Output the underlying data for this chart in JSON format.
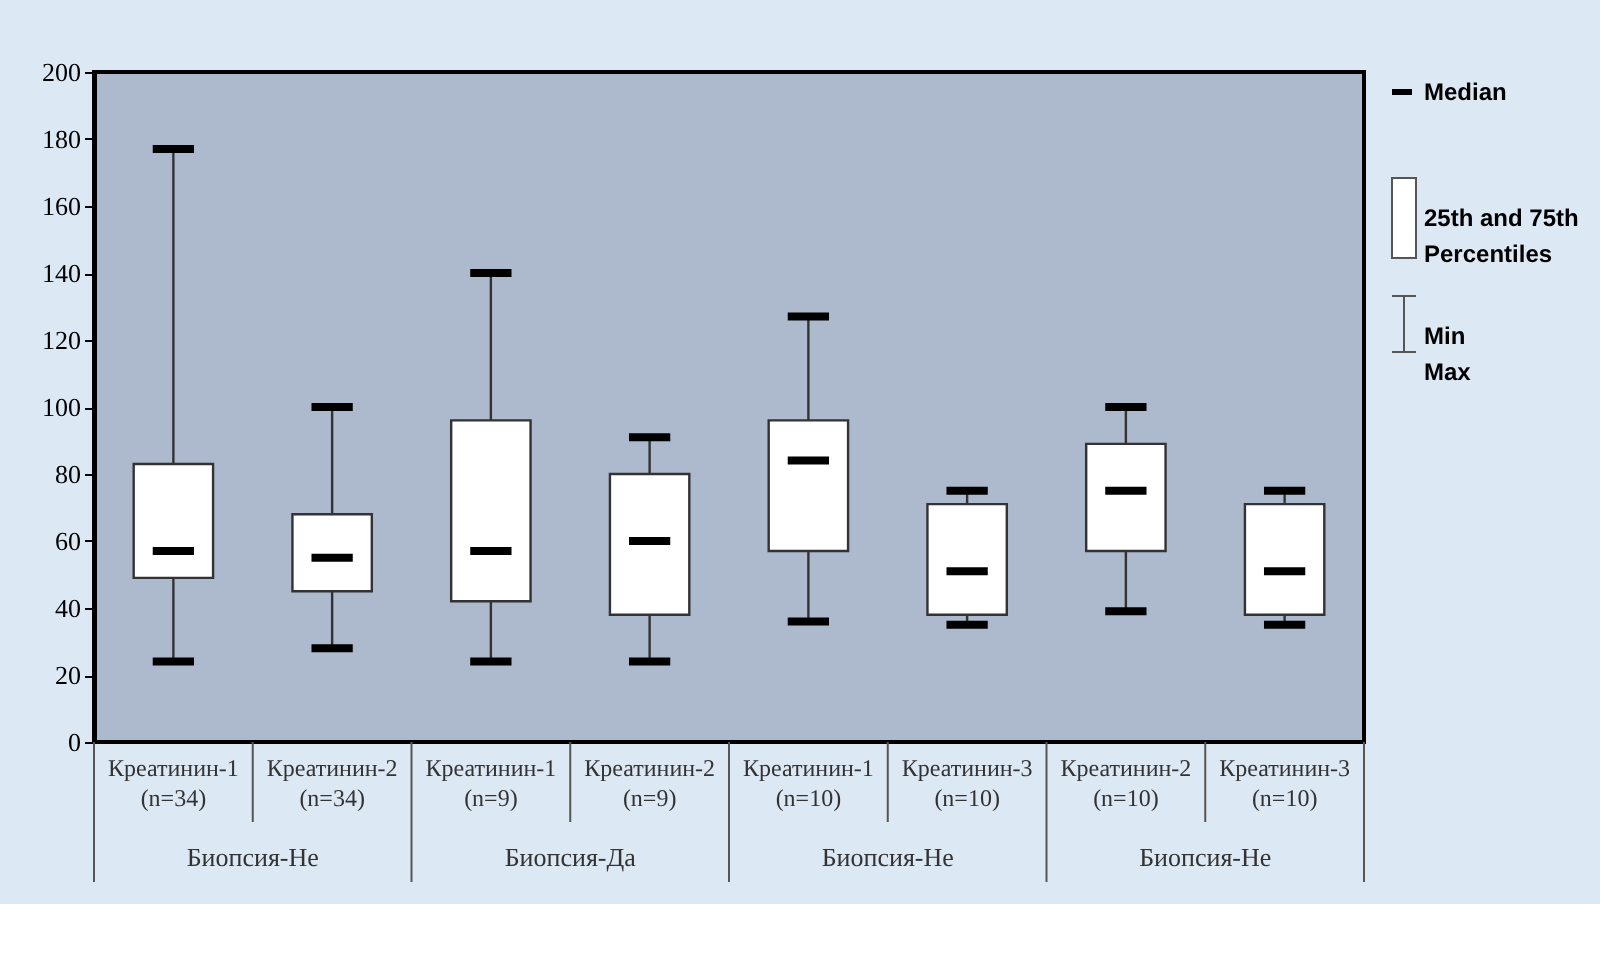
{
  "chart_data": {
    "type": "box",
    "categories": [
      "Креатинин-1 (n=34)",
      "Креатинин-2 (n=34)",
      "Креатинин-1 (n=9)",
      "Креатинин-2 (n=9)",
      "Креатинин-1 (n=10)",
      "Креатинин-3 (n=10)",
      "Креатинин-2 (n=10)",
      "Креатинин-3 (n=10)"
    ],
    "boxes": [
      {
        "low": 24,
        "q1": 49,
        "median": 57,
        "q3": 83,
        "high": 177
      },
      {
        "low": 28,
        "q1": 45,
        "median": 55,
        "q3": 68,
        "high": 100
      },
      {
        "low": 24,
        "q1": 42,
        "median": 57,
        "q3": 96,
        "high": 140
      },
      {
        "low": 24,
        "q1": 38,
        "median": 60,
        "q3": 80,
        "high": 91
      },
      {
        "low": 36,
        "q1": 57,
        "median": 84,
        "q3": 96,
        "high": 127
      },
      {
        "low": 35,
        "q1": 38,
        "median": 51,
        "q3": 71,
        "high": 75
      },
      {
        "low": 39,
        "q1": 57,
        "median": 75,
        "q3": 89,
        "high": 100
      },
      {
        "low": 35,
        "q1": 38,
        "median": 51,
        "q3": 71,
        "high": 75
      }
    ],
    "ylim": [
      0,
      200
    ],
    "yticks": [
      0,
      20,
      40,
      60,
      80,
      100,
      120,
      140,
      160,
      180,
      200
    ],
    "grid": false,
    "annotations": [
      "Биопсия-Не",
      "Биопсия-Да",
      "Биопсия-Не",
      "Биопсия-Не",
      "Median",
      "25th and 75th Percentiles",
      "Min Max"
    ]
  }
}
